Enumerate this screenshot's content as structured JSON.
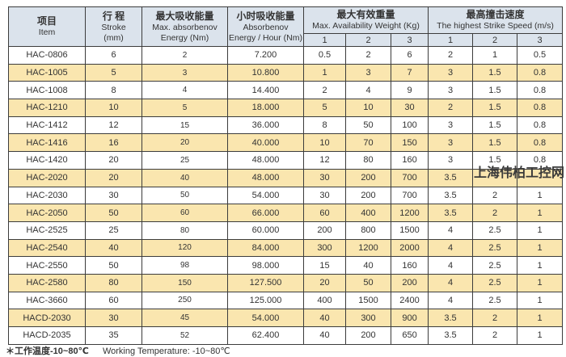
{
  "colors": {
    "header_bg": "#dbe3ec",
    "row_alt_bg": "#fae6af",
    "border": "#3c3c3c",
    "text": "#333333",
    "watermark": "#3a3a3a"
  },
  "watermark": {
    "text": "上海伟柏工控网"
  },
  "table": {
    "header": {
      "item": {
        "zh": "项目",
        "en": "Item"
      },
      "stroke": {
        "zh": "行 程",
        "en": "Stroke",
        "unit": "(mm)"
      },
      "max_energy": {
        "zh": "最大吸收能量",
        "en1": "Max. absorbenov",
        "en2": "Energy (Nm)"
      },
      "hour_energy": {
        "zh": "小时吸收能量",
        "en1": "Absorbenov",
        "en2": "Energy / Hour (Nm)"
      },
      "weight": {
        "zh": "最大有效重量",
        "en": "Max. Availability Weight (Kg)",
        "subs": [
          "1",
          "2",
          "3"
        ]
      },
      "speed": {
        "zh": "最高撞击速度",
        "en": "The highest Strike Speed (m/s)",
        "subs": [
          "1",
          "2",
          "3"
        ]
      }
    },
    "rows": [
      {
        "model": "HAC-0806",
        "stroke": "6",
        "max_energy": "2",
        "hour_energy": "7.200",
        "w1": "0.5",
        "w2": "2",
        "w3": "6",
        "s1": "2",
        "s2": "1",
        "s3": "0.5"
      },
      {
        "model": "HAC-1005",
        "stroke": "5",
        "max_energy": "3",
        "hour_energy": "10.800",
        "w1": "1",
        "w2": "3",
        "w3": "7",
        "s1": "3",
        "s2": "1.5",
        "s3": "0.8"
      },
      {
        "model": "HAC-1008",
        "stroke": "8",
        "max_energy": "4",
        "hour_energy": "14.400",
        "w1": "2",
        "w2": "4",
        "w3": "9",
        "s1": "3",
        "s2": "1.5",
        "s3": "0.8"
      },
      {
        "model": "HAC-1210",
        "stroke": "10",
        "max_energy": "5",
        "hour_energy": "18.000",
        "w1": "5",
        "w2": "10",
        "w3": "30",
        "s1": "2",
        "s2": "1.5",
        "s3": "0.8"
      },
      {
        "model": "HAC-1412",
        "stroke": "12",
        "max_energy": "15",
        "hour_energy": "36.000",
        "w1": "8",
        "w2": "50",
        "w3": "100",
        "s1": "3",
        "s2": "1.5",
        "s3": "0.8"
      },
      {
        "model": "HAC-1416",
        "stroke": "16",
        "max_energy": "20",
        "hour_energy": "40.000",
        "w1": "10",
        "w2": "70",
        "w3": "150",
        "s1": "3",
        "s2": "1.5",
        "s3": "0.8"
      },
      {
        "model": "HAC-1420",
        "stroke": "20",
        "max_energy": "25",
        "hour_energy": "48.000",
        "w1": "12",
        "w2": "80",
        "w3": "160",
        "s1": "3",
        "s2": "1.5",
        "s3": "0.8"
      },
      {
        "model": "HAC-2020",
        "stroke": "20",
        "max_energy": "40",
        "hour_energy": "48.000",
        "w1": "30",
        "w2": "200",
        "w3": "700",
        "s1": "3.5",
        "s2": "",
        "s3": ""
      },
      {
        "model": "HAC-2030",
        "stroke": "30",
        "max_energy": "50",
        "hour_energy": "54.000",
        "w1": "30",
        "w2": "200",
        "w3": "700",
        "s1": "3.5",
        "s2": "2",
        "s3": "1"
      },
      {
        "model": "HAC-2050",
        "stroke": "50",
        "max_energy": "60",
        "hour_energy": "66.000",
        "w1": "60",
        "w2": "400",
        "w3": "1200",
        "s1": "3.5",
        "s2": "2",
        "s3": "1"
      },
      {
        "model": "HAC-2525",
        "stroke": "25",
        "max_energy": "80",
        "hour_energy": "60.000",
        "w1": "200",
        "w2": "800",
        "w3": "1500",
        "s1": "4",
        "s2": "2.5",
        "s3": "1"
      },
      {
        "model": "HAC-2540",
        "stroke": "40",
        "max_energy": "120",
        "hour_energy": "84.000",
        "w1": "300",
        "w2": "1200",
        "w3": "2000",
        "s1": "4",
        "s2": "2.5",
        "s3": "1"
      },
      {
        "model": "HAC-2550",
        "stroke": "50",
        "max_energy": "98",
        "hour_energy": "98.000",
        "w1": "15",
        "w2": "40",
        "w3": "160",
        "s1": "4",
        "s2": "2.5",
        "s3": "1"
      },
      {
        "model": "HAC-2580",
        "stroke": "80",
        "max_energy": "150",
        "hour_energy": "127.500",
        "w1": "20",
        "w2": "50",
        "w3": "200",
        "s1": "4",
        "s2": "2.5",
        "s3": "1"
      },
      {
        "model": "HAC-3660",
        "stroke": "60",
        "max_energy": "250",
        "hour_energy": "125.000",
        "w1": "400",
        "w2": "1500",
        "w3": "2400",
        "s1": "4",
        "s2": "2.5",
        "s3": "1"
      },
      {
        "model": "HACD-2030",
        "stroke": "30",
        "max_energy": "45",
        "hour_energy": "54.000",
        "w1": "40",
        "w2": "300",
        "w3": "900",
        "s1": "3.5",
        "s2": "2",
        "s3": "1"
      },
      {
        "model": "HACD-2035",
        "stroke": "35",
        "max_energy": "52",
        "hour_energy": "62.400",
        "w1": "40",
        "w2": "200",
        "w3": "650",
        "s1": "3.5",
        "s2": "2",
        "s3": "1"
      }
    ]
  },
  "footer": {
    "note_zh": "＊工作温度-10~80℃",
    "note_en": "Working Temperature: -10~80℃"
  }
}
